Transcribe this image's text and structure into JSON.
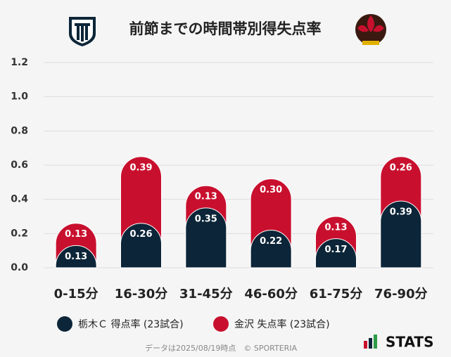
{
  "chart_data": {
    "type": "stacked_bar",
    "title": "前節までの時間帯別得失点率",
    "categories": [
      "0-15分",
      "16-30分",
      "31-45分",
      "46-60分",
      "61-75分",
      "76-90分"
    ],
    "series": [
      {
        "name": "栃木Ｃ 得点率 (23試合)",
        "color": "#0c2538",
        "values": [
          0.13,
          0.26,
          0.35,
          0.22,
          0.17,
          0.39
        ],
        "value_labels": [
          "0.13",
          "0.26",
          "0.35",
          "0.22",
          "0.17",
          "0.39"
        ]
      },
      {
        "name": "金沢 失点率 (23試合)",
        "color": "#c8102e",
        "values": [
          0.13,
          0.39,
          0.13,
          0.3,
          0.13,
          0.26
        ],
        "value_labels": [
          "0.13",
          "0.39",
          "0.13",
          "0.30",
          "0.13",
          "0.26"
        ]
      }
    ],
    "ylim": [
      0,
      1.2
    ],
    "yticks": [
      {
        "value": 0,
        "label": "0.0"
      },
      0.2,
      0.4,
      0.6,
      0.8,
      {
        "value": 1,
        "label": "1.0"
      },
      1.2
    ],
    "grid": true,
    "footer": "データは2025/08/19時点　© SPORTERIA",
    "brand": "STATS"
  }
}
